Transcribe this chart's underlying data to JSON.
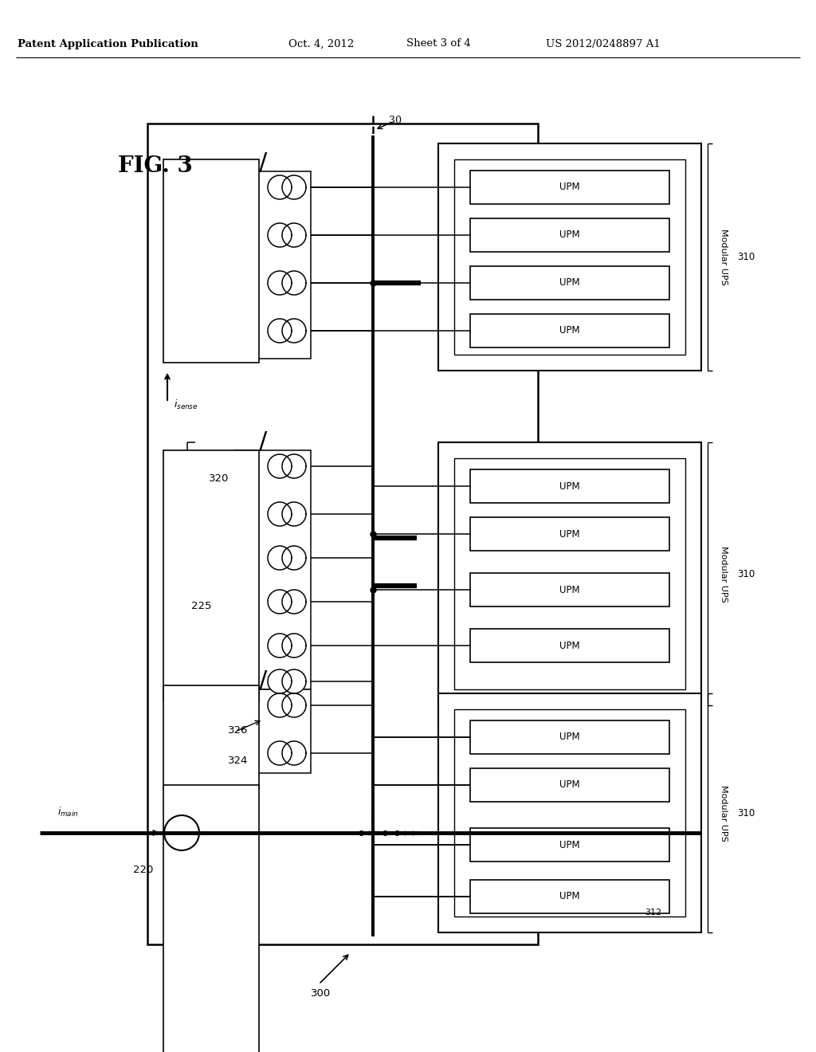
{
  "bg_color": "#ffffff",
  "header_left": "Patent Application Publication",
  "header_date": "Oct. 4, 2012",
  "header_sheet": "Sheet 3 of 4",
  "header_patent": "US 2012/0248897 A1",
  "fig_label": "FIG. 3",
  "label_30": "30",
  "label_220": "220",
  "label_225": "225",
  "label_300": "300",
  "label_310": "310",
  "label_312": "312",
  "label_320": "320",
  "label_324": "324",
  "label_326": "326",
  "label_UPM": "UPM",
  "label_ModularUPS": "Modular UPS",
  "line_color": "#000000",
  "bus_lw": 2.8,
  "main_bus_lw": 3.5
}
